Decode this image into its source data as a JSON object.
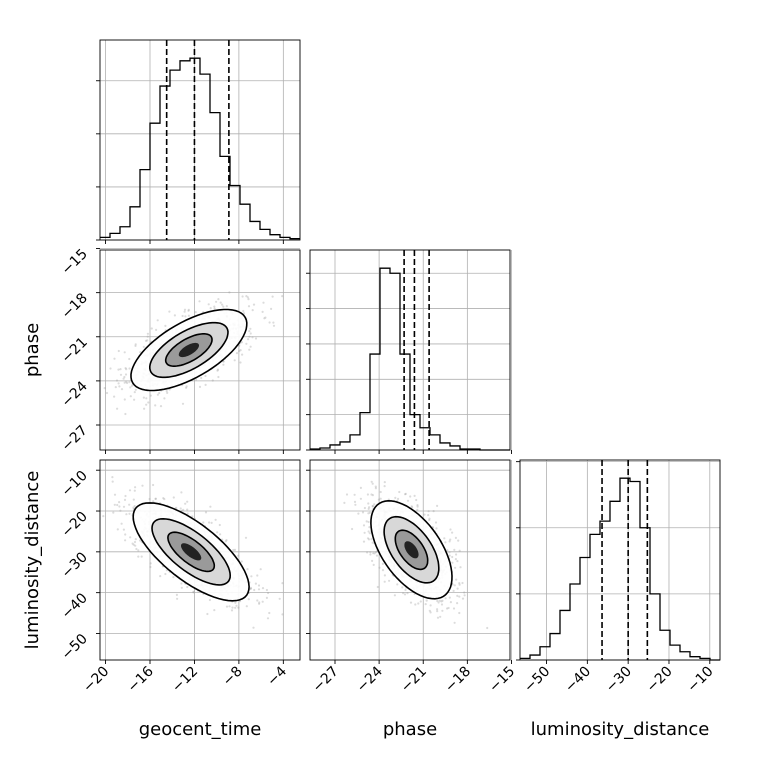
{
  "chart_data": {
    "type": "corner",
    "parameters": [
      "geocent_time",
      "phase",
      "luminosity_distance"
    ],
    "axis_labels": {
      "x": [
        "geocent_time",
        "phase",
        "luminosity_distance"
      ],
      "y": [
        "phase",
        "luminosity_distance"
      ]
    },
    "ranges": {
      "geocent_time": [
        -20.5,
        -2.5
      ],
      "phase": [
        -28.7,
        -15.1
      ],
      "luminosity_distance": [
        -56.5,
        -7.5
      ]
    },
    "ticks": {
      "geocent_time": [
        -20,
        -16,
        -12,
        -8,
        -4
      ],
      "phase": [
        -27,
        -24,
        -21,
        -18,
        -15
      ],
      "luminosity_distance": [
        -50,
        -40,
        -30,
        -20,
        -10
      ]
    },
    "grid": true,
    "histograms": [
      {
        "parameter": "geocent_time",
        "bin_edges": [
          -20.5,
          -19.6,
          -18.7,
          -17.8,
          -16.9,
          -16.0,
          -15.1,
          -14.2,
          -13.3,
          -12.4,
          -11.5,
          -10.6,
          -9.7,
          -8.8,
          -7.9,
          -7.0,
          -6.1,
          -5.2,
          -4.3,
          -3.4,
          -2.5
        ],
        "counts": [
          2,
          5,
          10,
          25,
          53,
          88,
          116,
          128,
          135,
          137,
          125,
          96,
          63,
          41,
          27,
          14,
          8,
          4,
          2,
          1
        ],
        "quantile_lines": [
          -14.5,
          -12.0,
          -8.9
        ]
      },
      {
        "parameter": "phase",
        "bin_edges": [
          -28.7,
          -28.02,
          -27.34,
          -26.66,
          -25.98,
          -25.3,
          -24.62,
          -23.94,
          -23.26,
          -22.58,
          -21.9,
          -21.22,
          -20.54,
          -19.86,
          -19.18,
          -18.5,
          -17.82,
          -17.14,
          -16.46,
          -15.78,
          -15.1
        ],
        "counts": [
          1,
          2,
          5,
          8,
          15,
          37,
          95,
          180,
          175,
          95,
          35,
          22,
          15,
          7,
          4,
          1,
          1,
          0,
          0,
          0
        ],
        "quantile_lines": [
          -22.3,
          -21.6,
          -20.6
        ]
      },
      {
        "parameter": "luminosity_distance",
        "bin_edges": [
          -56.5,
          -54.05,
          -51.6,
          -49.15,
          -46.7,
          -44.25,
          -41.8,
          -39.35,
          -36.9,
          -34.45,
          -32.0,
          -29.55,
          -27.1,
          -24.65,
          -22.2,
          -19.75,
          -17.3,
          -14.85,
          -12.4,
          -9.95,
          -7.5
        ],
        "counts": [
          1,
          3,
          8,
          16,
          30,
          46,
          62,
          76,
          84,
          96,
          110,
          108,
          80,
          40,
          18,
          9,
          5,
          2,
          1,
          0
        ],
        "quantile_lines": [
          -36.4,
          -30.0,
          -25.3
        ]
      }
    ],
    "scatter_2d": [
      {
        "x": "geocent_time",
        "y": "phase",
        "center": [
          -12.5,
          -21.9
        ],
        "covariance": [
          [
            6.8,
            2.3
          ],
          [
            2.3,
            1.9
          ]
        ],
        "n_points": 1200
      },
      {
        "x": "geocent_time",
        "y": "luminosity_distance",
        "center": [
          -12.3,
          -30.0
        ],
        "covariance": [
          [
            6.8,
            -11.2
          ],
          [
            -11.2,
            36.0
          ]
        ],
        "n_points": 1200
      },
      {
        "x": "phase",
        "y": "luminosity_distance",
        "center": [
          -21.8,
          -29.5
        ],
        "covariance": [
          [
            1.9,
            -4.6
          ],
          [
            -4.6,
            36.0
          ]
        ],
        "n_points": 1200
      }
    ]
  }
}
